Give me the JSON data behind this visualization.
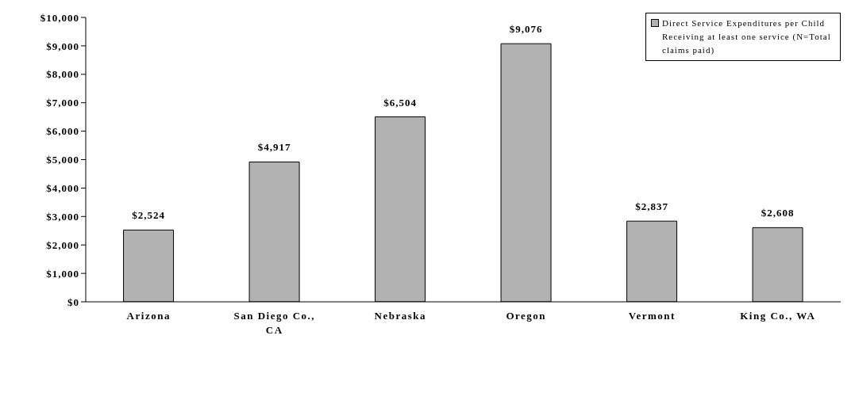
{
  "chart_data": {
    "type": "bar",
    "categories": [
      "Arizona",
      "San Diego Co., CA",
      "Nebraska",
      "Oregon",
      "Vermont",
      "King Co., WA"
    ],
    "series": [
      {
        "name": "Direct Service Expenditures per Child Receiving at least one service (N=Total claims paid)",
        "color": "#b2b2b2",
        "values": [
          2524,
          4917,
          6504,
          9076,
          2837,
          2608
        ],
        "value_labels": [
          "$2,524",
          "$4,917",
          "$6,504",
          "$9,076",
          "$2,837",
          "$2,608"
        ]
      }
    ],
    "ylim": [
      0,
      10000
    ],
    "yticks": [
      {
        "value": 0,
        "label": "$0"
      },
      {
        "value": 1000,
        "label": "$1,000"
      },
      {
        "value": 2000,
        "label": "$2,000"
      },
      {
        "value": 3000,
        "label": "$3,000"
      },
      {
        "value": 4000,
        "label": "$4,000"
      },
      {
        "value": 5000,
        "label": "$5,000"
      },
      {
        "value": 6000,
        "label": "$6,000"
      },
      {
        "value": 7000,
        "label": "$7,000"
      },
      {
        "value": 8000,
        "label": "$8,000"
      },
      {
        "value": 9000,
        "label": "$9,000"
      },
      {
        "value": 10000,
        "label": "$10,000"
      }
    ],
    "grid": false,
    "legend": "top right"
  }
}
